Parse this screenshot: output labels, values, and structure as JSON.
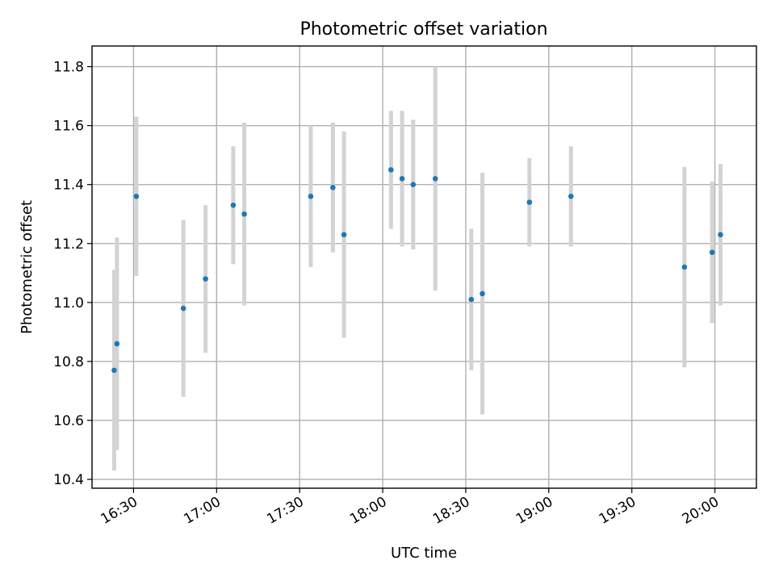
{
  "chart_data": {
    "type": "scatter",
    "title": "Photometric offset variation",
    "xlabel": "UTC time",
    "ylabel": "Photometric offset",
    "grid": true,
    "x_unit": "time of day (HH:MM)",
    "xlim": [
      "16:15",
      "20:15"
    ],
    "ylim": [
      10.37,
      11.87
    ],
    "x_ticks": [
      "16:30",
      "17:00",
      "17:30",
      "18:00",
      "18:30",
      "19:00",
      "19:30",
      "20:00"
    ],
    "y_ticks": [
      10.4,
      10.6,
      10.8,
      11.0,
      11.2,
      11.4,
      11.6,
      11.8
    ],
    "y_tick_labels": [
      "10.4",
      "10.6",
      "10.8",
      "11.0",
      "11.2",
      "11.4",
      "11.6",
      "11.8"
    ],
    "colors": {
      "point": "#1f77b4",
      "errorbar": "#d3d3d3"
    },
    "series": [
      {
        "points": [
          {
            "x": "16:23",
            "y": 10.77,
            "err": 0.34
          },
          {
            "x": "16:24",
            "y": 10.86,
            "err": 0.36
          },
          {
            "x": "16:31",
            "y": 11.36,
            "err": 0.27
          },
          {
            "x": "16:48",
            "y": 10.98,
            "err": 0.3
          },
          {
            "x": "16:56",
            "y": 11.08,
            "err": 0.25
          },
          {
            "x": "17:06",
            "y": 11.33,
            "err": 0.2
          },
          {
            "x": "17:10",
            "y": 11.3,
            "err": 0.31
          },
          {
            "x": "17:34",
            "y": 11.36,
            "err": 0.24
          },
          {
            "x": "17:42",
            "y": 11.39,
            "err": 0.22
          },
          {
            "x": "17:46",
            "y": 11.23,
            "err": 0.35
          },
          {
            "x": "18:03",
            "y": 11.45,
            "err": 0.2
          },
          {
            "x": "18:07",
            "y": 11.42,
            "err": 0.23
          },
          {
            "x": "18:11",
            "y": 11.4,
            "err": 0.22
          },
          {
            "x": "18:19",
            "y": 11.42,
            "err": 0.38
          },
          {
            "x": "18:32",
            "y": 11.01,
            "err": 0.24
          },
          {
            "x": "18:36",
            "y": 11.03,
            "err": 0.41
          },
          {
            "x": "18:53",
            "y": 11.34,
            "err": 0.15
          },
          {
            "x": "19:08",
            "y": 11.36,
            "err": 0.17
          },
          {
            "x": "19:49",
            "y": 11.12,
            "err": 0.34
          },
          {
            "x": "19:59",
            "y": 11.17,
            "err": 0.24
          },
          {
            "x": "20:02",
            "y": 11.23,
            "err": 0.24
          }
        ]
      }
    ]
  }
}
